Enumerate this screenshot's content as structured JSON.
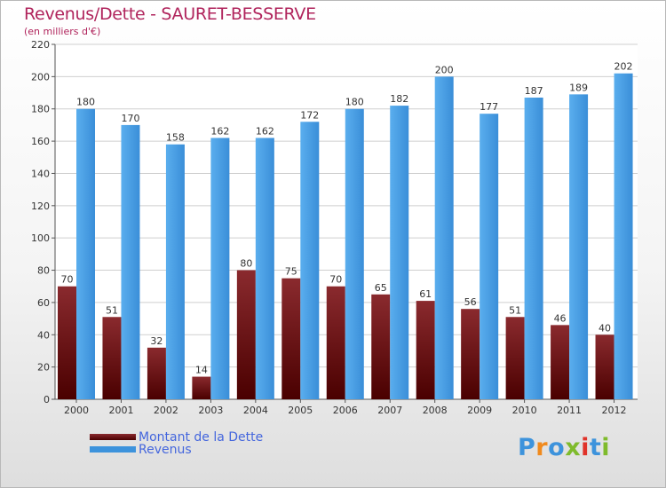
{
  "title": "Revenus/Dette - SAURET-BESSERVE",
  "subtitle": "(en milliers d'€)",
  "legend": [
    {
      "label": "Montant de la Dette",
      "color": "#6b0c0c"
    },
    {
      "label": "Revenus",
      "color": "#3d93dc"
    }
  ],
  "logo": {
    "text": "Proxiti",
    "colors": [
      "#3d93dc",
      "#f08a1d",
      "#3d93dc",
      "#7fbb2c",
      "#e0332a",
      "#3d93dc",
      "#7fbb2c"
    ]
  },
  "chart_data": {
    "type": "bar",
    "categories": [
      "2000",
      "2001",
      "2002",
      "2003",
      "2004",
      "2005",
      "2006",
      "2007",
      "2008",
      "2009",
      "2010",
      "2011",
      "2012"
    ],
    "series": [
      {
        "name": "Montant de la Dette",
        "color": "#6b0c0c",
        "values": [
          70,
          51,
          32,
          14,
          80,
          75,
          70,
          65,
          61,
          56,
          51,
          46,
          40
        ]
      },
      {
        "name": "Revenus",
        "color": "#3d93dc",
        "values": [
          180,
          170,
          158,
          162,
          162,
          172,
          180,
          182,
          200,
          177,
          187,
          189,
          202
        ]
      }
    ],
    "ylim": [
      0,
      220
    ],
    "yticks": [
      0,
      20,
      40,
      60,
      80,
      100,
      120,
      140,
      160,
      180,
      200,
      220
    ],
    "grid": true,
    "legend_position": "bottom-left"
  }
}
